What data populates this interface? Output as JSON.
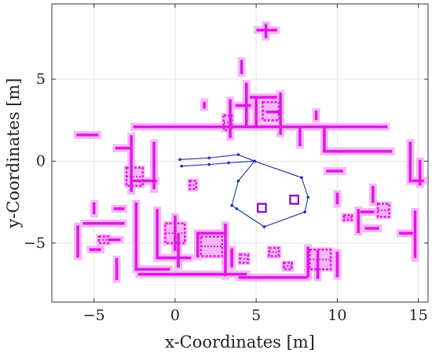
{
  "chart_data": {
    "type": "scatter",
    "xlabel": "x-Coordinates [m]",
    "ylabel": "y-Coordinates [m]",
    "xlim": [
      -7.6,
      15.6
    ],
    "ylim": [
      -8.6,
      9.6
    ],
    "grid": true,
    "xticks": [
      -5,
      0,
      5,
      10,
      15
    ],
    "yticks": [
      -5,
      0,
      5
    ],
    "xtick_labels": [
      "−5",
      "0",
      "5",
      "10",
      "15"
    ],
    "ytick_labels": [
      "−5",
      "0",
      "5"
    ],
    "colors": {
      "map": "#e016e8",
      "map_halo": "#f6b8f6",
      "path": "#1f2fb0",
      "grid": "#e3e3e3",
      "axes": "#333333"
    },
    "series": [
      {
        "kind": "path",
        "points": [
          [
            0.4,
            -0.3
          ],
          [
            2.1,
            -0.2
          ],
          [
            3.3,
            -0.1
          ],
          [
            4.9,
            0.0
          ],
          [
            3.9,
            0.4
          ],
          [
            2.1,
            0.2
          ],
          [
            0.3,
            0.1
          ]
        ]
      },
      {
        "kind": "path",
        "points": [
          [
            4.9,
            0.0
          ],
          [
            7.8,
            -1.0
          ],
          [
            8.2,
            -2.2
          ],
          [
            8.0,
            -3.1
          ],
          [
            5.5,
            -4.0
          ],
          [
            3.8,
            -2.9
          ],
          [
            3.5,
            -2.7
          ],
          [
            3.9,
            -1.2
          ],
          [
            4.9,
            0.0
          ]
        ]
      },
      {
        "kind": "polygon",
        "points": [
          [
            5.1,
            -2.6
          ],
          [
            5.6,
            -2.6
          ],
          [
            5.6,
            -3.1
          ],
          [
            5.1,
            -3.1
          ]
        ]
      },
      {
        "kind": "polygon",
        "points": [
          [
            7.1,
            -2.1
          ],
          [
            7.6,
            -2.1
          ],
          [
            7.6,
            -2.6
          ],
          [
            7.1,
            -2.6
          ]
        ]
      },
      {
        "kind": "occupancy",
        "segments": [
          [
            [
              -2.5,
              2.1
            ],
            [
              13.0,
              2.1
            ]
          ],
          [
            [
              -6.0,
              1.6
            ],
            [
              -4.8,
              1.6
            ]
          ],
          [
            [
              -2.7,
              1.5
            ],
            [
              -2.7,
              -1.8
            ]
          ],
          [
            [
              -2.7,
              -1.2
            ],
            [
              -1.2,
              -1.2
            ]
          ],
          [
            [
              -1.3,
              1.1
            ],
            [
              -1.3,
              -1.7
            ]
          ],
          [
            [
              -3.6,
              0.8
            ],
            [
              -2.7,
              0.8
            ]
          ],
          [
            [
              3.4,
              3.7
            ],
            [
              3.4,
              1.5
            ]
          ],
          [
            [
              3.8,
              3.4
            ],
            [
              4.6,
              3.4
            ]
          ],
          [
            [
              4.4,
              4.7
            ],
            [
              4.4,
              2.2
            ]
          ],
          [
            [
              4.7,
              3.9
            ],
            [
              6.2,
              3.9
            ]
          ],
          [
            [
              5.0,
              3.8
            ],
            [
              5.0,
              2.1
            ]
          ],
          [
            [
              5.7,
              3.0
            ],
            [
              6.4,
              3.0
            ]
          ],
          [
            [
              6.5,
              4.1
            ],
            [
              6.5,
              1.7
            ]
          ],
          [
            [
              7.7,
              2.0
            ],
            [
              7.7,
              1.0
            ]
          ],
          [
            [
              9.2,
              2.1
            ],
            [
              9.2,
              0.6
            ]
          ],
          [
            [
              9.2,
              0.6
            ],
            [
              13.3,
              0.6
            ]
          ],
          [
            [
              14.5,
              1.1
            ],
            [
              14.5,
              -1.2
            ]
          ],
          [
            [
              15.1,
              0.0
            ],
            [
              15.1,
              -1.4
            ]
          ],
          [
            [
              -5.0,
              -2.6
            ],
            [
              -5.0,
              -3.2
            ]
          ],
          [
            [
              -2.4,
              -2.6
            ],
            [
              -2.4,
              -6.6
            ]
          ],
          [
            [
              -2.4,
              -6.6
            ],
            [
              -0.4,
              -6.6
            ]
          ],
          [
            [
              -1.1,
              -3.0
            ],
            [
              -1.1,
              -5.9
            ]
          ],
          [
            [
              -1.1,
              -5.9
            ],
            [
              0.9,
              -5.9
            ]
          ],
          [
            [
              -5.6,
              -3.8
            ],
            [
              -3.2,
              -3.8
            ]
          ],
          [
            [
              -3.6,
              -6.0
            ],
            [
              -3.6,
              -7.2
            ]
          ],
          [
            [
              -2.2,
              -6.9
            ],
            [
              4.4,
              -6.9
            ]
          ],
          [
            [
              0.2,
              -4.5
            ],
            [
              0.2,
              -6.4
            ]
          ],
          [
            [
              1.4,
              -4.4
            ],
            [
              3.1,
              -4.4
            ]
          ],
          [
            [
              1.4,
              -4.4
            ],
            [
              1.4,
              -5.8
            ]
          ],
          [
            [
              3.1,
              -3.9
            ],
            [
              3.1,
              -7.0
            ]
          ],
          [
            [
              3.5,
              -5.4
            ],
            [
              3.5,
              -6.4
            ]
          ],
          [
            [
              4.0,
              -7.1
            ],
            [
              8.1,
              -7.1
            ]
          ],
          [
            [
              8.2,
              -5.3
            ],
            [
              8.2,
              -7.0
            ]
          ],
          [
            [
              8.8,
              -5.5
            ],
            [
              8.8,
              -7.1
            ]
          ],
          [
            [
              10.0,
              -5.6
            ],
            [
              10.0,
              -7.0
            ]
          ],
          [
            [
              11.3,
              -3.0
            ],
            [
              11.3,
              -4.3
            ]
          ],
          [
            [
              11.5,
              -3.1
            ],
            [
              12.2,
              -3.1
            ]
          ],
          [
            [
              11.8,
              -4.1
            ],
            [
              12.5,
              -4.1
            ]
          ],
          [
            [
              14.8,
              -3.1
            ],
            [
              14.8,
              -5.9
            ]
          ],
          [
            [
              13.9,
              -4.4
            ],
            [
              14.6,
              -4.4
            ]
          ],
          [
            [
              14.7,
              -1.2
            ],
            [
              15.3,
              -1.2
            ]
          ],
          [
            [
              -6.0,
              -4.0
            ],
            [
              -6.0,
              -5.8
            ]
          ],
          [
            [
              -5.2,
              -5.4
            ],
            [
              -4.6,
              -5.4
            ]
          ],
          [
            [
              -3.7,
              -2.9
            ],
            [
              -3.2,
              -2.9
            ]
          ],
          [
            [
              -4.0,
              -4.8
            ],
            [
              -3.4,
              -4.8
            ]
          ],
          [
            [
              0.0,
              -3.4
            ],
            [
              0.0,
              -5.4
            ]
          ],
          [
            [
              10.0,
              -2.0
            ],
            [
              10.0,
              -2.6
            ]
          ],
          [
            [
              9.4,
              -0.6
            ],
            [
              10.3,
              -0.6
            ]
          ],
          [
            [
              12.2,
              -1.6
            ],
            [
              12.2,
              -2.5
            ]
          ],
          [
            [
              5.1,
              8.0
            ],
            [
              6.2,
              8.0
            ]
          ],
          [
            [
              5.6,
              7.6
            ],
            [
              5.6,
              8.3
            ]
          ],
          [
            [
              4.1,
              5.4
            ],
            [
              4.1,
              6.1
            ]
          ],
          [
            [
              1.8,
              3.3
            ],
            [
              1.8,
              3.6
            ]
          ],
          [
            [
              8.7,
              3.0
            ],
            [
              8.7,
              2.6
            ]
          ]
        ],
        "blobs": [
          [
            [
              -3.0,
              -0.4
            ],
            [
              -2.0,
              -1.5
            ]
          ],
          [
            [
              -0.6,
              -3.8
            ],
            [
              0.6,
              -5.0
            ]
          ],
          [
            [
              1.6,
              -4.6
            ],
            [
              2.9,
              -5.8
            ]
          ],
          [
            [
              8.3,
              -5.4
            ],
            [
              9.6,
              -6.6
            ]
          ],
          [
            [
              3.0,
              2.8
            ],
            [
              3.5,
              1.9
            ]
          ],
          [
            [
              5.4,
              3.6
            ],
            [
              6.4,
              2.5
            ]
          ],
          [
            [
              12.5,
              -2.6
            ],
            [
              13.2,
              -3.4
            ]
          ],
          [
            [
              -4.7,
              -4.6
            ],
            [
              -4.1,
              -5.0
            ]
          ],
          [
            [
              5.8,
              -5.3
            ],
            [
              6.4,
              -5.8
            ]
          ],
          [
            [
              6.7,
              -6.2
            ],
            [
              7.2,
              -6.6
            ]
          ],
          [
            [
              4.0,
              -5.7
            ],
            [
              4.5,
              -6.2
            ]
          ],
          [
            [
              0.9,
              -1.2
            ],
            [
              1.3,
              -1.7
            ]
          ],
          [
            [
              10.4,
              -3.3
            ],
            [
              10.9,
              -3.6
            ]
          ]
        ]
      }
    ]
  }
}
